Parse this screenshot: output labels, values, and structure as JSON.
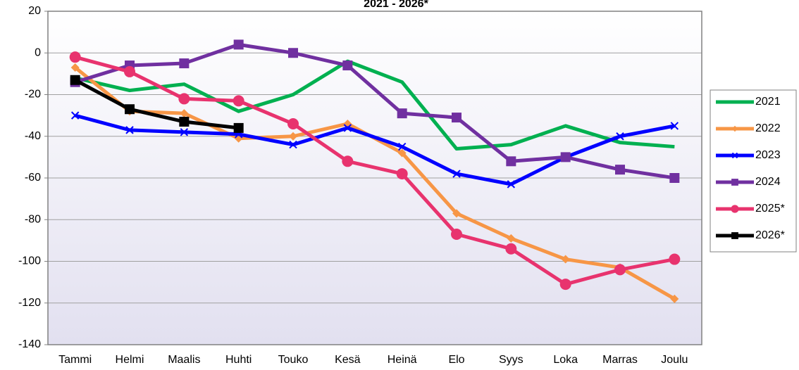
{
  "chart_data": {
    "type": "line",
    "title": "2021 - 2026*",
    "categories": [
      "Tammi",
      "Helmi",
      "Maalis",
      "Huhti",
      "Touko",
      "Kesä",
      "Heinä",
      "Elo",
      "Syys",
      "Loka",
      "Marras",
      "Joulu"
    ],
    "ylim": [
      -140,
      20
    ],
    "yticks": [
      -140,
      -120,
      -100,
      -80,
      -60,
      -40,
      -20,
      0,
      20
    ],
    "grid": true,
    "legend": "right",
    "series": [
      {
        "name": "2021",
        "color": "#00b050",
        "marker": "none",
        "values": [
          -12,
          -18,
          -15,
          -28,
          -20,
          -4,
          -14,
          -46,
          -44,
          -35,
          -43,
          -45
        ]
      },
      {
        "name": "2022",
        "color": "#f79646",
        "marker": "diamond",
        "values": [
          -7,
          -28,
          -29,
          -41,
          -40,
          -34,
          -48,
          -77,
          -89,
          -99,
          -103,
          -118
        ]
      },
      {
        "name": "2023",
        "color": "#0000ff",
        "marker": "x",
        "values": [
          -30,
          -37,
          -38,
          -39,
          -44,
          -36,
          -45,
          -58,
          -63,
          -50,
          -40,
          -35
        ]
      },
      {
        "name": "2024",
        "color": "#7030a0",
        "marker": "square",
        "values": [
          -14,
          -6,
          -5,
          4,
          0,
          -6,
          -29,
          -31,
          -52,
          -50,
          -56,
          -60
        ]
      },
      {
        "name": "2025*",
        "color": "#e8336e",
        "marker": "circle",
        "values": [
          -2,
          -9,
          -22,
          -23,
          -34,
          -52,
          -58,
          -87,
          -94,
          -111,
          -104,
          -99
        ]
      },
      {
        "name": "2026*",
        "color": "#000000",
        "marker": "square",
        "values": [
          -13,
          -27,
          -33,
          -36,
          null,
          null,
          null,
          null,
          null,
          null,
          null,
          null
        ]
      }
    ]
  }
}
